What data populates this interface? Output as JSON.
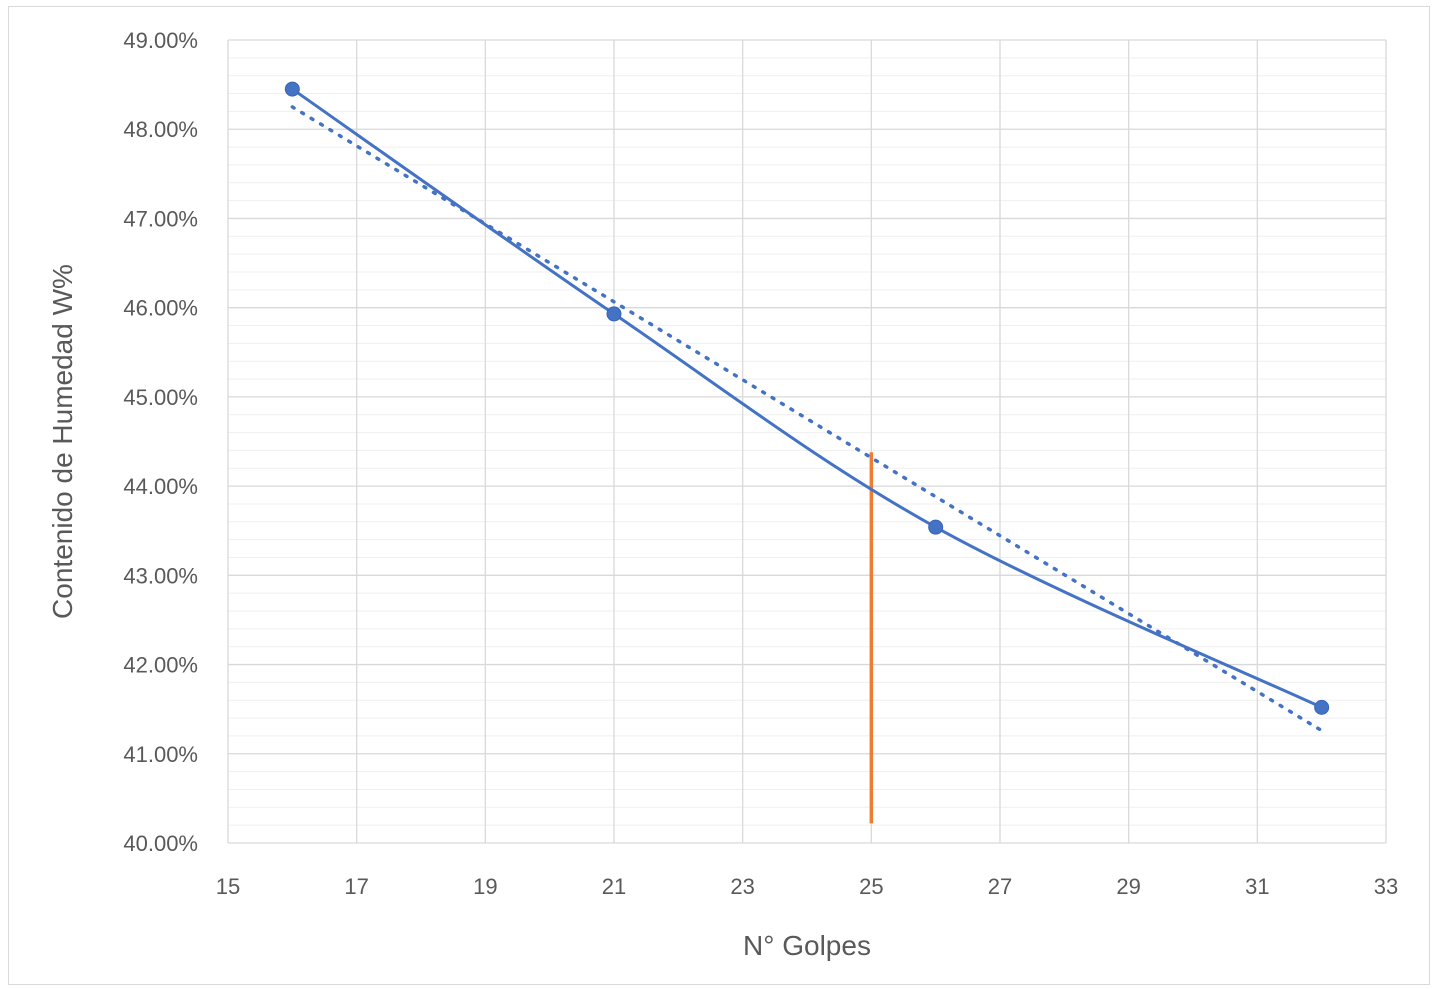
{
  "chart_data": {
    "type": "scatter",
    "title": "",
    "xlabel": "N° Golpes",
    "ylabel": "Contenido de Humedad W%",
    "xlim": [
      15,
      33
    ],
    "ylim": [
      0.4,
      0.49
    ],
    "x_ticks": [
      "15",
      "17",
      "19",
      "21",
      "23",
      "25",
      "27",
      "29",
      "31",
      "33"
    ],
    "y_ticks": [
      "40.00%",
      "41.00%",
      "42.00%",
      "43.00%",
      "44.00%",
      "45.00%",
      "46.00%",
      "47.00%",
      "48.00%",
      "49.00%"
    ],
    "grid": true,
    "legend": "none",
    "series": [
      {
        "style": "smooth line with markers",
        "color": "#4472c4",
        "x": [
          16,
          21,
          26,
          32
        ],
        "y": [
          0.4845,
          0.4593,
          0.4354,
          0.4152
        ]
      },
      {
        "style": "dotted trendline",
        "color": "#4472c4",
        "x": [
          16,
          32
        ],
        "y": [
          0.4825,
          0.4126
        ]
      }
    ],
    "reference_line": {
      "style": "vertical line",
      "color": "#ed7d31",
      "x": 25,
      "y": [
        0.4022,
        0.4438
      ]
    }
  }
}
